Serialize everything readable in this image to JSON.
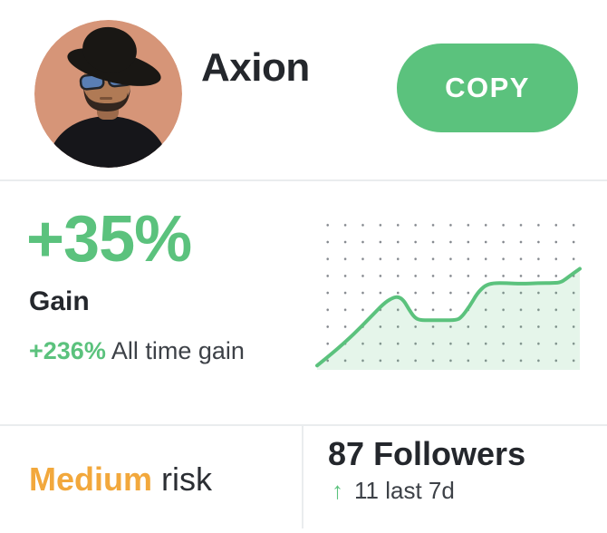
{
  "header": {
    "name": "Axion",
    "copy_button": "COPY"
  },
  "gain": {
    "value": "+35%",
    "label": "Gain",
    "all_time_value": "+236%",
    "all_time_label": "All time gain"
  },
  "risk": {
    "level": "Medium",
    "suffix": "risk"
  },
  "followers": {
    "count": "87",
    "label": "Followers",
    "arrow": "↑",
    "delta": "11 last 7d"
  },
  "colors": {
    "green": "#5bc27d",
    "green_fill": "rgba(91,194,125,0.16)",
    "orange": "#f2a83c",
    "dark_text": "#24272c",
    "gray_text": "#3d4147",
    "divider": "#eaecee",
    "dot_grid": "#83878d"
  },
  "icons": {
    "up_arrow": "arrow pointing up, green, follower growth",
    "avatar": "man with black wide-brim hat and blue sunglasses against terracotta wall"
  },
  "chart_data": {
    "type": "area",
    "title": "",
    "xlabel": "",
    "ylabel": "",
    "xlim": [
      0,
      100
    ],
    "ylim": [
      0,
      100
    ],
    "grid": "dotted",
    "legend": false,
    "line_color": "#5bc27d",
    "fill_color": "rgba(91,194,125,0.16)",
    "x": [
      0,
      5,
      11,
      17,
      22,
      26,
      29,
      31,
      33,
      35,
      37,
      39,
      43,
      48,
      53,
      55,
      58,
      61,
      64,
      67,
      72,
      78,
      84,
      90,
      93,
      96,
      100
    ],
    "values": [
      1,
      8,
      17,
      27,
      36,
      43,
      46,
      46.5,
      44,
      38,
      33,
      31,
      31,
      31,
      31,
      33,
      40,
      49,
      54,
      55.5,
      55.5,
      55,
      55.5,
      55.5,
      56,
      60,
      65
    ]
  }
}
